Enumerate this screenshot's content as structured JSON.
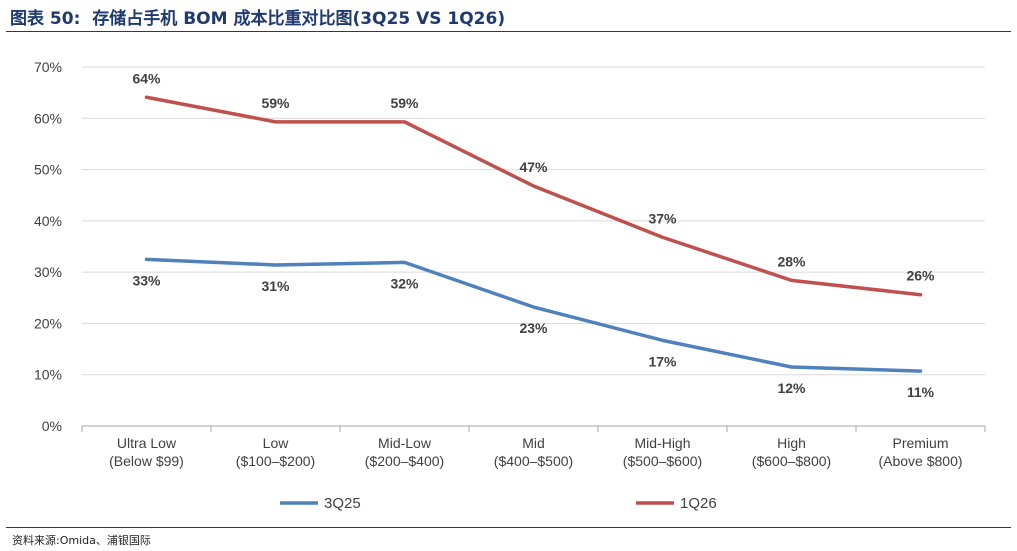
{
  "header": {
    "figure_label": "图表 50:",
    "title": "存储占手机 BOM 成本比重对比图(3Q25 VS 1Q26)"
  },
  "footer": {
    "source": "资料来源:Omida、浦银国际"
  },
  "colors": {
    "series_3q25": "#4f81bd",
    "series_1q26": "#c0504d",
    "header": "#1f3a6e",
    "grid": "#d9d9d9"
  },
  "chart_data": {
    "type": "line",
    "title": "",
    "xlabel": "",
    "ylabel": "",
    "ylim": [
      0,
      70
    ],
    "yticks": [
      "0%",
      "10%",
      "20%",
      "30%",
      "40%",
      "50%",
      "60%",
      "70%"
    ],
    "grid": true,
    "legend_position": "bottom",
    "categories": [
      [
        "Ultra Low",
        "(Below $99)"
      ],
      [
        "Low",
        "($100–$200)"
      ],
      [
        "Mid-Low",
        "($200–$400)"
      ],
      [
        "Mid",
        "($400–$500)"
      ],
      [
        "Mid-High",
        "($500–$600)"
      ],
      [
        "High",
        "($600–$800)"
      ],
      [
        "Premium",
        "(Above $800)"
      ]
    ],
    "series": [
      {
        "name": "3Q25",
        "values": [
          32.5,
          31.4,
          31.9,
          23.2,
          16.7,
          11.5,
          10.7
        ],
        "labels": [
          "33%",
          "31%",
          "32%",
          "23%",
          "17%",
          "12%",
          "11%"
        ],
        "label_pos": "below"
      },
      {
        "name": "1Q26",
        "values": [
          64.1,
          59.3,
          59.3,
          46.8,
          36.8,
          28.4,
          25.6
        ],
        "labels": [
          "64%",
          "59%",
          "59%",
          "47%",
          "37%",
          "28%",
          "26%"
        ],
        "label_pos": "above"
      }
    ]
  }
}
